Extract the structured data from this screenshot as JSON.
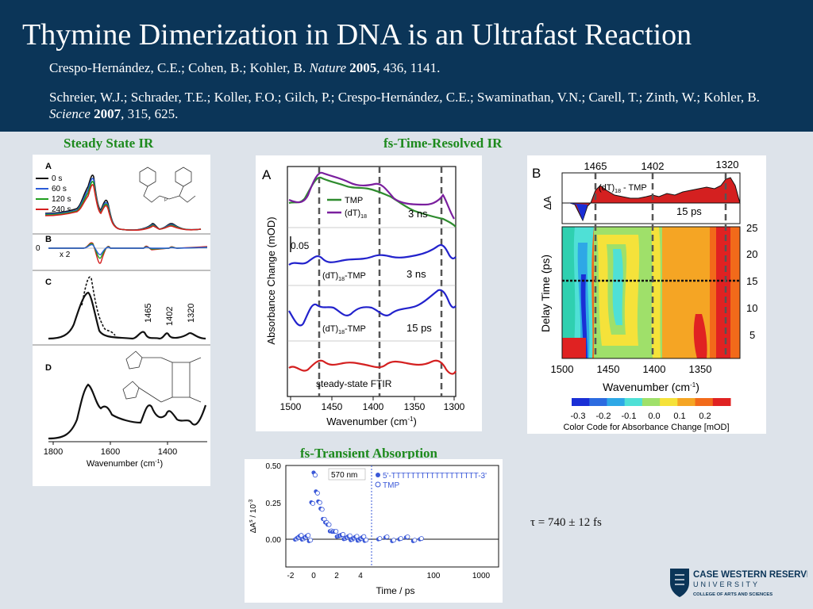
{
  "header": {
    "title": "Thymine Dimerization in DNA is an Ultrafast Reaction",
    "ref1": {
      "authors": "Crespo-Hernández, C.E.; Cohen, B.; Kohler, B. ",
      "journal": "Nature",
      "year": "2005",
      "rest": ", 436, 1141."
    },
    "ref2": {
      "authors": "Schreier, W.J.; Schrader, T.E.; Koller, F.O.; Gilch, P.; Crespo-Hernández, C.E.; Swaminathan, V.N.; Carell, T.; Zinth, W.; Kohler, B. ",
      "journal": "Science",
      "year": "2007",
      "rest": ", 315, 625."
    }
  },
  "sections": {
    "steady": "Steady State IR",
    "fsir": "fs-Time-Resolved IR",
    "fsta": "fs-Transient Absorption"
  },
  "steady_panel": {
    "labels": {
      "a": "A",
      "b": "B",
      "c": "C",
      "d": "D",
      "zero": "0",
      "x2": "x 2"
    },
    "legend": [
      "0 s",
      "60 s",
      "120 s",
      "240 s"
    ],
    "legend_colors": [
      "#111111",
      "#2a5bd7",
      "#1e9e1e",
      "#d42020"
    ],
    "peaks": [
      "1465",
      "1402",
      "1320"
    ],
    "ticks": [
      "1800",
      "1600",
      "1400"
    ],
    "xlabel": "Wavenumber (cm",
    "xlabel_sup": "-1",
    "xlabel_end": ")"
  },
  "panel_a": {
    "label": "A",
    "legend": [
      "TMP",
      "(dT)"
    ],
    "legend_sub": "18",
    "colors": {
      "tmp": "#2e8b2e",
      "dt": "#7a1f9e",
      "blue": "#2222cc",
      "red": "#d42020"
    },
    "trace_labels": [
      "3 ns",
      "3 ns",
      "15 ps",
      "steady-state FTIR"
    ],
    "diff_label": "(dT)",
    "diff_sub": "18",
    "diff_end": "-TMP",
    "scale": "0.05",
    "ylabel": "Absorbance Change (mOD)",
    "xlabel": "Wavenumber (cm",
    "xlabel_sup": "-1",
    "xlabel_end": ")",
    "xticks": [
      "1500",
      "1450",
      "1400",
      "1350",
      "1300"
    ]
  },
  "panel_b": {
    "label": "B",
    "peak_labels": [
      "1465",
      "1402",
      "1320"
    ],
    "delta_a": "ΔA",
    "spec_label": "(dT)",
    "spec_sub": "18",
    "spec_end": " - TMP",
    "time_label": "15 ps",
    "ylabel": "Delay Time (ps)",
    "yticks": [
      "25",
      "20",
      "15",
      "10",
      "5"
    ],
    "xticks": [
      "1500",
      "1450",
      "1400",
      "1350"
    ],
    "xlabel": "Wavenumber (cm",
    "xlabel_sup": "-1",
    "xlabel_end": ")",
    "colorbar_ticks": [
      "-0.3",
      "-0.2",
      "-0.1",
      "0.0",
      "0.1",
      "0.2"
    ],
    "colorbar_colors": [
      "#1a2fd6",
      "#2c6be0",
      "#2ea8e6",
      "#4fe0d6",
      "#9fe06a",
      "#f5e23a",
      "#f5a524",
      "#f26a1a",
      "#e02222"
    ],
    "colorbar_label": "Color Code for Absorbance Change [mOD]"
  },
  "ta_panel": {
    "annotation": "570 nm",
    "legend": [
      "5'-TTTTTTTTTTTTTTTTTT-3'",
      "TMP"
    ],
    "ylabel": "ΔA",
    "ylabel_sup": "s",
    "ylabel_end": " / 10",
    "ylabel_exp": "-3",
    "yticks": [
      "0.50",
      "0.25",
      "0.00"
    ],
    "xticks": [
      "-2",
      "0",
      "2",
      "4",
      "100",
      "1000"
    ],
    "xlabel": "Time / ps",
    "color": "#3a58d8"
  },
  "tau": "τ = 740 ± 12 fs",
  "logo": {
    "name": "CASE WESTERN RESERVE",
    "sub": "UNIVERSITY",
    "college": "COLLEGE OF ARTS AND SCIENCES"
  }
}
